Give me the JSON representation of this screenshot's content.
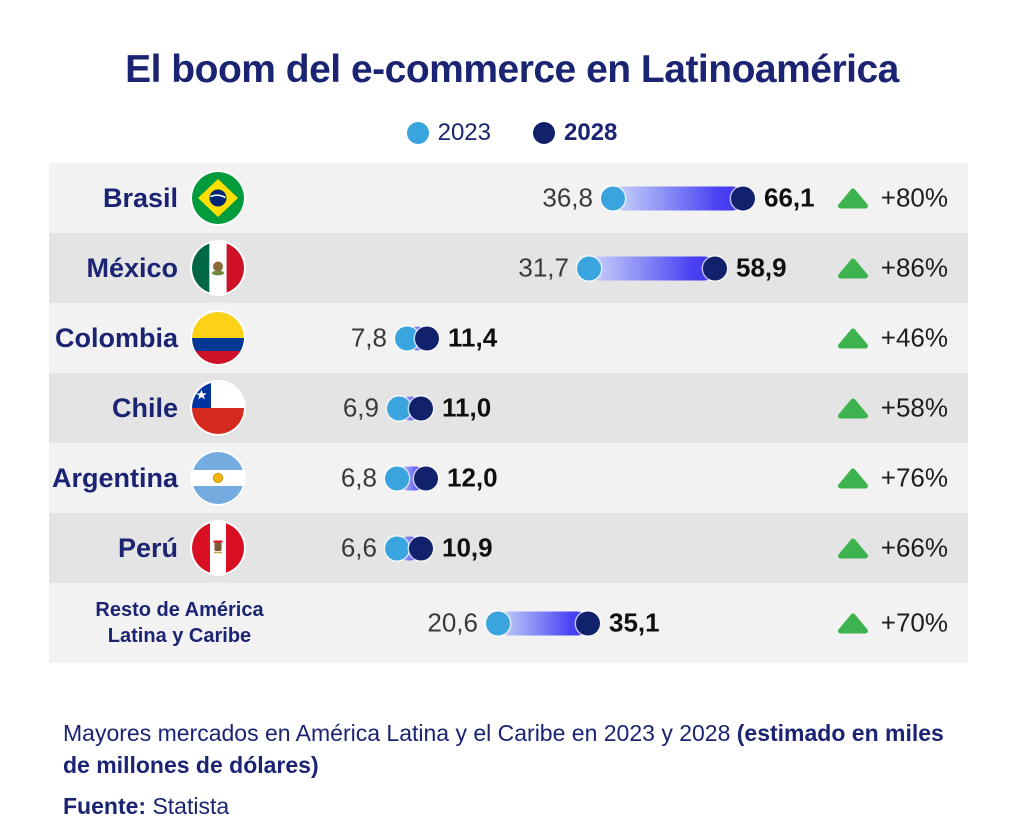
{
  "title": "El boom del e-commerce en Latinoamérica",
  "legend": [
    {
      "label": "2023",
      "color": "#3aa4df"
    },
    {
      "label": "2028",
      "color": "#12216b"
    }
  ],
  "chart_data": {
    "type": "bar",
    "subtype": "dumbbell",
    "title": "El boom del e-commerce en Latinoamérica",
    "series_years": [
      "2023",
      "2028"
    ],
    "unit": "miles de millones de dólares",
    "legend_position": "top-center",
    "rows": [
      {
        "country": "Brasil",
        "flag_icon": "brasil-flag-icon",
        "v2023": 36.8,
        "v2028": 66.1,
        "v2023_label": "36,8",
        "v2028_label": "66,1",
        "change_label": "+80%"
      },
      {
        "country": "México",
        "flag_icon": "mexico-flag-icon",
        "v2023": 31.7,
        "v2028": 58.9,
        "v2023_label": "31,7",
        "v2028_label": "58,9",
        "change_label": "+86%"
      },
      {
        "country": "Colombia",
        "flag_icon": "colombia-flag-icon",
        "v2023": 7.8,
        "v2028": 11.4,
        "v2023_label": "7,8",
        "v2028_label": "11,4",
        "change_label": "+46%"
      },
      {
        "country": "Chile",
        "flag_icon": "chile-flag-icon",
        "v2023": 6.9,
        "v2028": 11.0,
        "v2023_label": "6,9",
        "v2028_label": "11,0",
        "change_label": "+58%"
      },
      {
        "country": "Argentina",
        "flag_icon": "argentina-flag-icon",
        "v2023": 6.8,
        "v2028": 12.0,
        "v2023_label": "6,8",
        "v2028_label": "12,0",
        "change_label": "+76%"
      },
      {
        "country": "Perú",
        "flag_icon": "peru-flag-icon",
        "v2023": 6.6,
        "v2028": 10.9,
        "v2023_label": "6,6",
        "v2028_label": "10,9",
        "change_label": "+66%"
      },
      {
        "country": "Resto de América Latina y Caribe",
        "flag_icon": null,
        "v2023": 20.6,
        "v2028": 35.1,
        "v2023_label": "20,6",
        "v2028_label": "35,1",
        "change_label": "+70%"
      }
    ],
    "colors": {
      "y2023_dot": "#3aa4df",
      "y2028_dot": "#12216b",
      "bar_gradient": [
        "#ccd6f9",
        "#3a32ea"
      ],
      "positive_change": "#3cb34f",
      "row_light": "#f2f2f2",
      "row_dark": "#e4e4e4",
      "navy_text": "#1a2472"
    }
  },
  "footer": {
    "caption_regular": "Mayores mercados en América Latina y el Caribe en 2023 y 2028 ",
    "caption_bold": "(estimado en miles de millones de dólares)",
    "source_label": "Fuente:",
    "source_value": " Statista"
  }
}
